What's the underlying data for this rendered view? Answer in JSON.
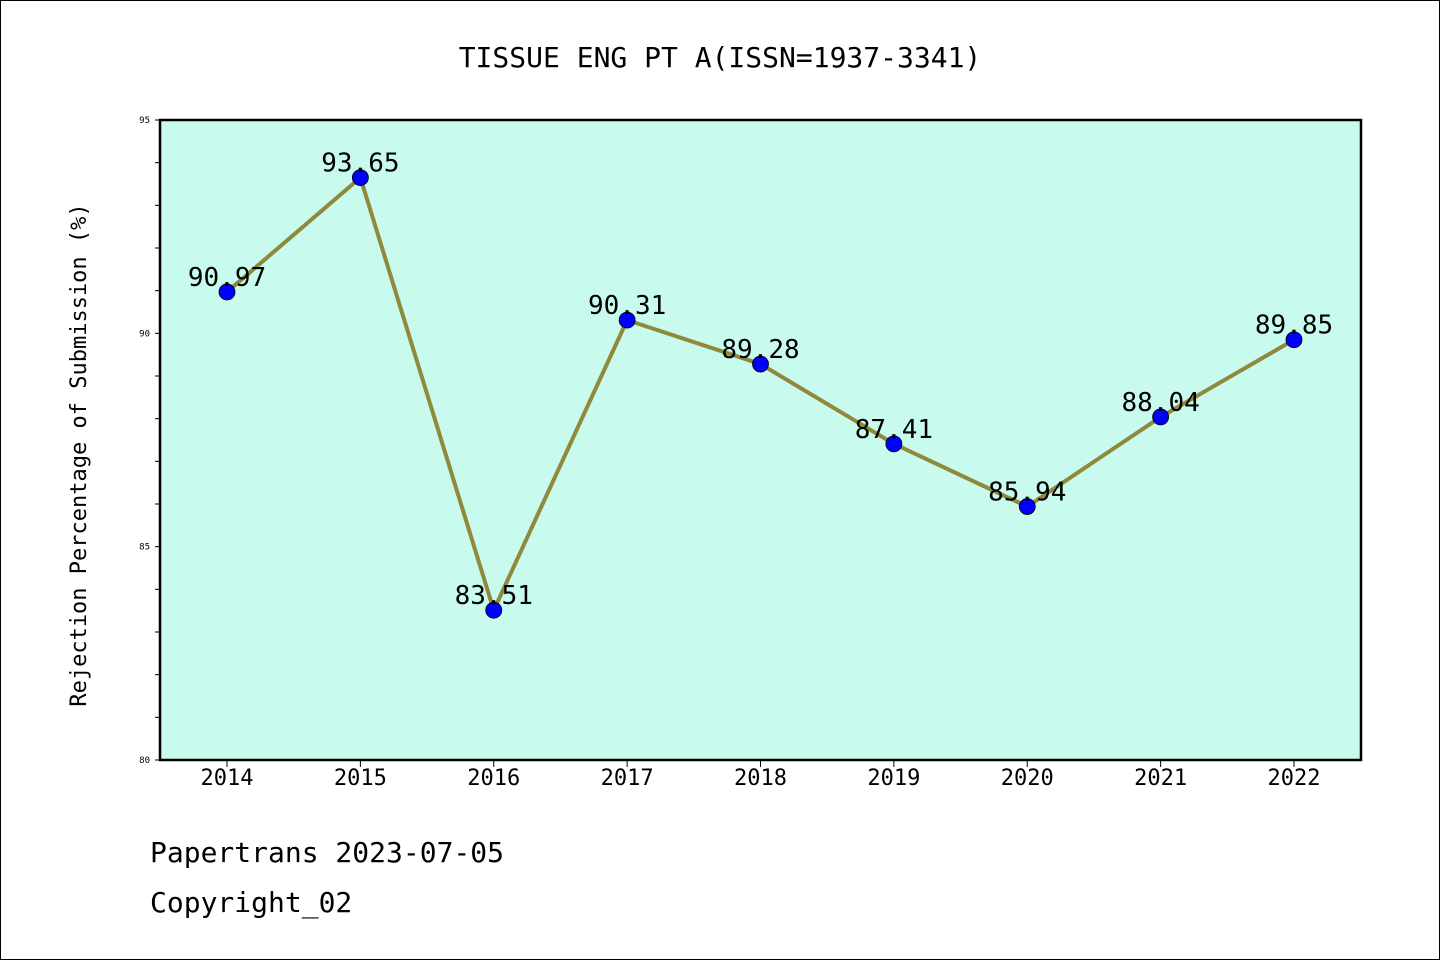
{
  "chart_data": {
    "type": "line",
    "title": "TISSUE ENG PT A(ISSN=1937-3341)",
    "xlabel": "",
    "ylabel": "Rejection Percentage of Submission (%)",
    "categories": [
      "2014",
      "2015",
      "2016",
      "2017",
      "2018",
      "2019",
      "2020",
      "2021",
      "2022"
    ],
    "series": [
      {
        "values": [
          90.97,
          93.65,
          83.51,
          90.31,
          89.28,
          87.41,
          85.94,
          88.04,
          89.85
        ],
        "color": "#8f8a3b",
        "marker_color": "#0000ff"
      }
    ],
    "data_labels": [
      "90.97",
      "93.65",
      "83.51",
      "90.31",
      "89.28",
      "87.41",
      "85.94",
      "88.04",
      "89.85"
    ],
    "ylim": [
      80,
      95
    ],
    "yticks": [
      "80",
      "85",
      "90",
      "95"
    ],
    "plot_background": "#c8faee",
    "grid": false,
    "legend": "none"
  },
  "footer": {
    "line1": "Papertrans 2023-07-05",
    "line2": "Copyright_02"
  }
}
